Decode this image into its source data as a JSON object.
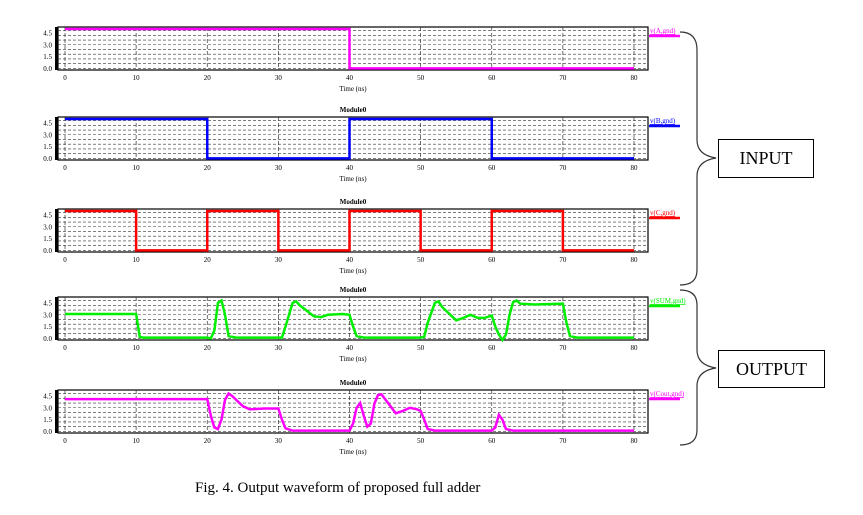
{
  "caption": "Fig. 4. Output waveform of proposed full adder",
  "groups": {
    "input": "INPUT",
    "output": "OUTPUT"
  },
  "chart_data": [
    {
      "type": "line",
      "title": "",
      "legend": "v(A,gnd)",
      "color": "#ff00ff",
      "xlabel": "Time (ns)",
      "xlim": [
        0,
        80
      ],
      "ylim": [
        0,
        5
      ],
      "xticks": [
        "0",
        "10",
        "20",
        "30",
        "40",
        "50",
        "60",
        "70",
        "80"
      ],
      "yticks": [
        "0.0",
        "1.5",
        "3.0",
        "4.5"
      ],
      "points": [
        [
          0,
          5
        ],
        [
          40,
          5
        ],
        [
          40,
          0
        ],
        [
          80,
          0
        ]
      ]
    },
    {
      "type": "line",
      "title": "Module0",
      "legend": "v(B,gnd)",
      "color": "#0000ff",
      "xlabel": "Time (ns)",
      "xlim": [
        0,
        80
      ],
      "ylim": [
        0,
        5
      ],
      "xticks": [
        "0",
        "10",
        "20",
        "30",
        "40",
        "50",
        "60",
        "70",
        "80"
      ],
      "yticks": [
        "0.0",
        "1.5",
        "3.0",
        "4.5"
      ],
      "points": [
        [
          0,
          5
        ],
        [
          20,
          5
        ],
        [
          20,
          0
        ],
        [
          40,
          0
        ],
        [
          40,
          5
        ],
        [
          60,
          5
        ],
        [
          60,
          0
        ],
        [
          80,
          0
        ]
      ]
    },
    {
      "type": "line",
      "title": "Module0",
      "legend": "v(C,gnd)",
      "color": "#ff0000",
      "xlabel": "Time (ns)",
      "xlim": [
        0,
        80
      ],
      "ylim": [
        0,
        5
      ],
      "xticks": [
        "0",
        "10",
        "20",
        "30",
        "40",
        "50",
        "60",
        "70",
        "80"
      ],
      "yticks": [
        "0.0",
        "1.5",
        "3.0",
        "4.5"
      ],
      "points": [
        [
          0,
          5
        ],
        [
          10,
          5
        ],
        [
          10,
          0
        ],
        [
          20,
          0
        ],
        [
          20,
          5
        ],
        [
          30,
          5
        ],
        [
          30,
          0
        ],
        [
          40,
          0
        ],
        [
          40,
          5
        ],
        [
          50,
          5
        ],
        [
          50,
          0
        ],
        [
          60,
          0
        ],
        [
          60,
          5
        ],
        [
          70,
          5
        ],
        [
          70,
          0
        ],
        [
          80,
          0
        ]
      ]
    },
    {
      "type": "line",
      "title": "Module0",
      "legend": "v(SUM,gnd)",
      "color": "#00ee00",
      "xlabel": "Time (ns)",
      "xlim": [
        0,
        80
      ],
      "ylim": [
        0,
        5
      ],
      "xticks": [
        "0",
        "10",
        "20",
        "30",
        "40",
        "50",
        "60",
        "70",
        "80"
      ],
      "yticks": [
        "0.0",
        "1.5",
        "3.0",
        "4.5"
      ],
      "points": [
        [
          0,
          3.1
        ],
        [
          10,
          3.1
        ],
        [
          10.5,
          0.2
        ],
        [
          11,
          0.1
        ],
        [
          20,
          0.1
        ],
        [
          20.5,
          0
        ],
        [
          21,
          1
        ],
        [
          21.5,
          4.5
        ],
        [
          22,
          4.8
        ],
        [
          22.5,
          3
        ],
        [
          23,
          0.3
        ],
        [
          24,
          0.1
        ],
        [
          30.5,
          0.1
        ],
        [
          31,
          1.5
        ],
        [
          32,
          4.5
        ],
        [
          32.5,
          4.7
        ],
        [
          33,
          4.2
        ],
        [
          35,
          2.8
        ],
        [
          36,
          2.7
        ],
        [
          37,
          3.0
        ],
        [
          39,
          3.1
        ],
        [
          40,
          3
        ],
        [
          40.5,
          1.5
        ],
        [
          41,
          0.3
        ],
        [
          42,
          0.1
        ],
        [
          50,
          0.1
        ],
        [
          50.5,
          0.2
        ],
        [
          51,
          2
        ],
        [
          52,
          4.5
        ],
        [
          52.5,
          4.7
        ],
        [
          53,
          4
        ],
        [
          55,
          2.3
        ],
        [
          56,
          2.6
        ],
        [
          57,
          3.0
        ],
        [
          58,
          2.6
        ],
        [
          59,
          2.6
        ],
        [
          60,
          2.9
        ],
        [
          60.5,
          1.5
        ],
        [
          61,
          0.5
        ],
        [
          61.5,
          -0.2
        ],
        [
          62,
          0.5
        ],
        [
          62.5,
          3
        ],
        [
          63,
          4.6
        ],
        [
          63.5,
          4.8
        ],
        [
          64,
          4.4
        ],
        [
          66,
          4.3
        ],
        [
          70,
          4.4
        ],
        [
          70.5,
          2
        ],
        [
          71,
          0.3
        ],
        [
          72,
          0.1
        ],
        [
          80,
          0.1
        ]
      ]
    },
    {
      "type": "line",
      "title": "Module0",
      "legend": "v(Cout,gnd)",
      "color": "#ff00ff",
      "xlabel": "Time (ns)",
      "xlim": [
        0,
        80
      ],
      "ylim": [
        0,
        5
      ],
      "xticks": [
        "0",
        "10",
        "20",
        "30",
        "40",
        "50",
        "60",
        "70",
        "80"
      ],
      "yticks": [
        "0.0",
        "1.5",
        "3.0",
        "4.5"
      ],
      "points": [
        [
          0,
          4.1
        ],
        [
          20,
          4.1
        ],
        [
          20.5,
          2
        ],
        [
          21,
          0.5
        ],
        [
          21.5,
          0.3
        ],
        [
          22,
          1.5
        ],
        [
          22.5,
          4
        ],
        [
          23,
          4.8
        ],
        [
          23.5,
          4.5
        ],
        [
          25,
          3.2
        ],
        [
          26,
          2.8
        ],
        [
          28,
          2.9
        ],
        [
          30,
          2.9
        ],
        [
          30.5,
          1.5
        ],
        [
          31,
          0.4
        ],
        [
          32,
          0.1
        ],
        [
          40,
          0.1
        ],
        [
          40.5,
          1
        ],
        [
          41,
          3
        ],
        [
          41.5,
          3.6
        ],
        [
          42,
          2
        ],
        [
          42.5,
          0.6
        ],
        [
          43,
          1
        ],
        [
          43.5,
          3.5
        ],
        [
          44,
          4.6
        ],
        [
          44.5,
          4.7
        ],
        [
          45.5,
          3.5
        ],
        [
          46.5,
          2.3
        ],
        [
          47.5,
          2.6
        ],
        [
          48.5,
          3
        ],
        [
          49.5,
          2.8
        ],
        [
          50,
          2.6
        ],
        [
          50.5,
          1.5
        ],
        [
          51,
          0.3
        ],
        [
          52,
          0.1
        ],
        [
          60,
          0.1
        ],
        [
          60.5,
          0.5
        ],
        [
          61,
          2.1
        ],
        [
          61.5,
          1.5
        ],
        [
          62,
          0.3
        ],
        [
          63,
          0.1
        ],
        [
          80,
          0.1
        ]
      ]
    }
  ]
}
